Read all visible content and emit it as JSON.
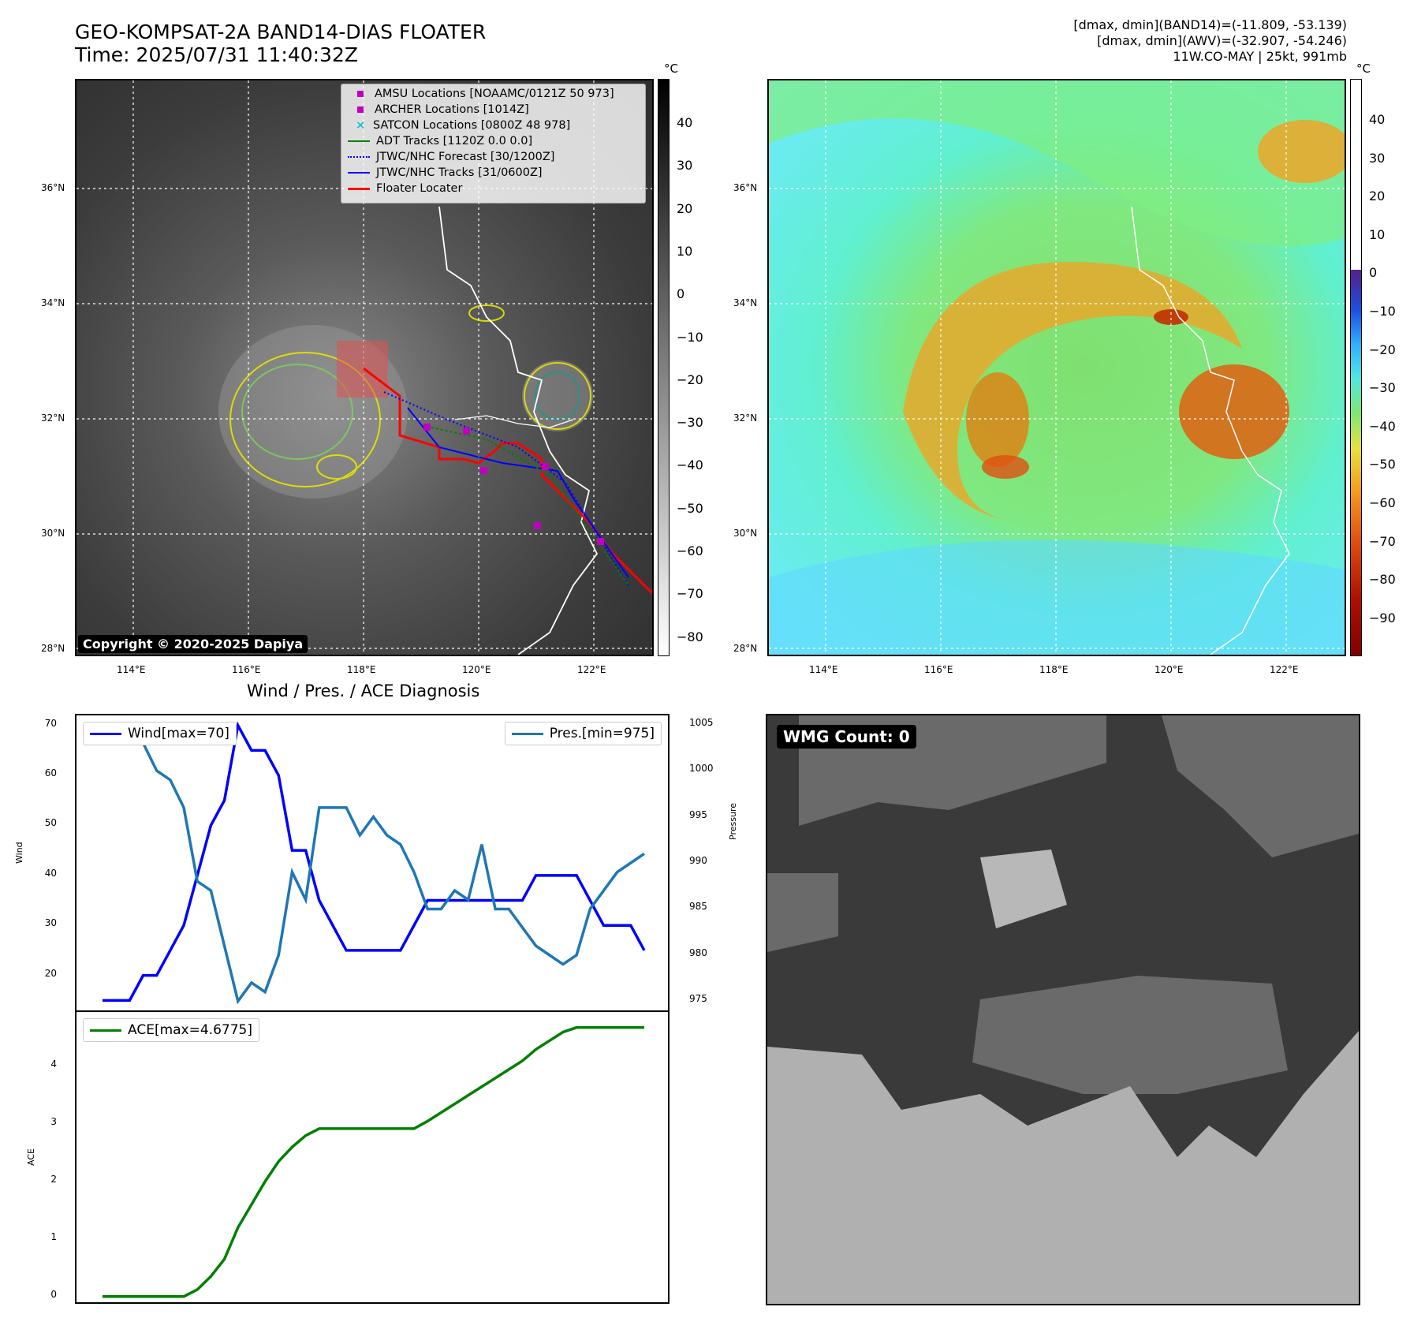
{
  "header": {
    "title_line1": "GEO-KOMPSAT-2A BAND14-DIAS FLOATER",
    "title_line2": "Time: 2025/07/31 11:40:32Z",
    "info_line1": "[dmax, dmin](BAND14)=(-11.809, -53.139)",
    "info_line2": "[dmax, dmin](AWV)=(-32.907, -54.246)",
    "info_line3": "11W.CO-MAY | 25kt, 991mb"
  },
  "map": {
    "lat_labels": [
      "36°N",
      "34°N",
      "32°N",
      "30°N",
      "28°N"
    ],
    "lon_labels": [
      "114°E",
      "116°E",
      "118°E",
      "120°E",
      "122°E"
    ],
    "copyright": "Copyright © 2020-2025 Dapiya",
    "legend": [
      {
        "label": "AMSU Locations [NOAAMC/0121Z 50 973]",
        "color": "#c000c0",
        "icon": "square-marker"
      },
      {
        "label": "ARCHER Locations [1014Z]",
        "color": "#c000c0",
        "icon": "square-marker"
      },
      {
        "label": "SATCON Locations [0800Z 48 978]",
        "color": "#17becf",
        "icon": "x-marker"
      },
      {
        "label": "ADT Tracks [1120Z 0.0 0.0]",
        "color": "#008000",
        "icon": "solid-line"
      },
      {
        "label": "JTWC/NHC Forecast [30/1200Z]",
        "color": "#0000ff",
        "icon": "dotted-line"
      },
      {
        "label": "JTWC/NHC Tracks [31/0600Z]",
        "color": "#0000ff",
        "icon": "dot-line"
      },
      {
        "label": "Floater Locater",
        "color": "#ff0000",
        "icon": "solid-line"
      }
    ],
    "left_colorbar": {
      "unit": "°C",
      "ticks": [
        "40",
        "30",
        "20",
        "10",
        "0",
        "−10",
        "−20",
        "−30",
        "−40",
        "−50",
        "−60",
        "−70",
        "−80"
      ]
    },
    "right_colorbar": {
      "unit": "°C",
      "ticks": [
        "40",
        "30",
        "20",
        "10",
        "0",
        "−10",
        "−20",
        "−30",
        "−40",
        "−50",
        "−60",
        "−70",
        "−80",
        "−90"
      ]
    }
  },
  "diagnosis": {
    "title": "Wind / Pres. / ACE Diagnosis",
    "wind_ylabel": "Wind",
    "pres_ylabel": "Pressure",
    "ace_ylabel": "ACE",
    "wind_legend": "Wind[max=70]",
    "pres_legend": "Pres.[min=975]",
    "ace_legend": "ACE[max=4.6775]",
    "wind_ticks": [
      "70",
      "60",
      "50",
      "40",
      "30",
      "20"
    ],
    "pres_ticks": [
      "1005",
      "1000",
      "995",
      "990",
      "985",
      "980",
      "975"
    ],
    "ace_ticks": [
      "4",
      "3",
      "2",
      "1",
      "0"
    ]
  },
  "wmg": {
    "label": "WMG Count: 0"
  },
  "chart_data": [
    {
      "type": "line",
      "title": "Wind / Pres. / ACE Diagnosis",
      "x": [
        0,
        1,
        2,
        3,
        4,
        5,
        6,
        7,
        8,
        9,
        10,
        11,
        12,
        13,
        14,
        15,
        16,
        17,
        18,
        19,
        20,
        21,
        22,
        23,
        24,
        25,
        26,
        27,
        28,
        29,
        30,
        31,
        32,
        33,
        34,
        35,
        36,
        37,
        38,
        39,
        40
      ],
      "series": [
        {
          "name": "Wind[max=70]",
          "axis": "left",
          "color": "#0000ff",
          "values": [
            15,
            15,
            15,
            20,
            20,
            25,
            30,
            40,
            50,
            55,
            70,
            65,
            65,
            60,
            45,
            45,
            35,
            30,
            25,
            25,
            25,
            25,
            25,
            30,
            35,
            35,
            35,
            35,
            35,
            35,
            35,
            35,
            40,
            40,
            40,
            40,
            35,
            30,
            30,
            30,
            25
          ]
        },
        {
          "name": "Pres.[min=975]",
          "axis": "right",
          "color": "#1f77b4",
          "values": [
            1004,
            1004,
            1004,
            1003,
            1000,
            999,
            996,
            988,
            987,
            981,
            975,
            977,
            976,
            980,
            989,
            986,
            996,
            996,
            996,
            993,
            995,
            993,
            992,
            989,
            985,
            985,
            987,
            986,
            992,
            985,
            985,
            983,
            981,
            980,
            979,
            980,
            985,
            987,
            989,
            990,
            991
          ]
        }
      ],
      "ylabel": "Wind",
      "ylim": [
        13,
        72
      ],
      "y2label": "Pressure",
      "y2lim": [
        974,
        1006
      ]
    },
    {
      "type": "line",
      "x": [
        0,
        1,
        2,
        3,
        4,
        5,
        6,
        7,
        8,
        9,
        10,
        11,
        12,
        13,
        14,
        15,
        16,
        17,
        18,
        19,
        20,
        21,
        22,
        23,
        24,
        25,
        26,
        27,
        28,
        29,
        30,
        31,
        32,
        33,
        34,
        35,
        36,
        37,
        38,
        39,
        40
      ],
      "series": [
        {
          "name": "ACE[max=4.6775]",
          "color": "#008000",
          "values": [
            0,
            0,
            0,
            0,
            0,
            0,
            0,
            0.12,
            0.35,
            0.65,
            1.2,
            1.6,
            2.0,
            2.35,
            2.6,
            2.8,
            2.92,
            2.92,
            2.92,
            2.92,
            2.92,
            2.92,
            2.92,
            2.92,
            3.05,
            3.2,
            3.35,
            3.5,
            3.65,
            3.8,
            3.95,
            4.1,
            4.3,
            4.45,
            4.6,
            4.68,
            4.68,
            4.68,
            4.68,
            4.68,
            4.68
          ]
        }
      ],
      "ylabel": "ACE",
      "ylim": [
        -0.1,
        4.95
      ]
    }
  ]
}
